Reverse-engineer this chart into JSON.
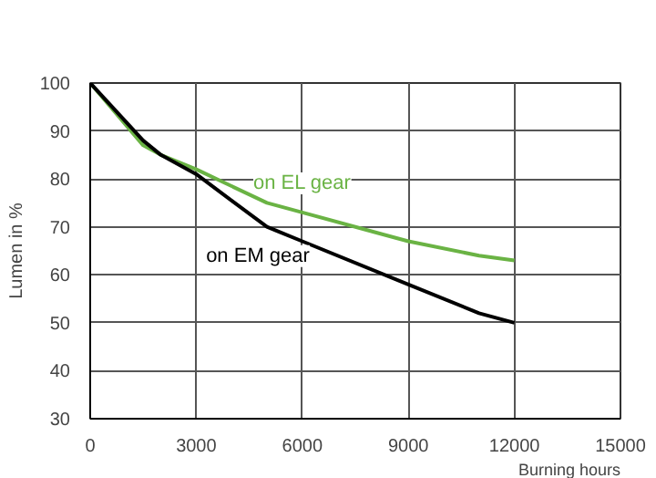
{
  "chart_data": {
    "type": "line",
    "xlabel": "Burning hours",
    "ylabel": "Lumen in %",
    "xlim": [
      0,
      15000
    ],
    "xticks": [
      0,
      3000,
      6000,
      9000,
      12000,
      15000
    ],
    "ylim": [
      30,
      100
    ],
    "yticks": [
      30,
      40,
      50,
      60,
      70,
      80,
      90,
      100
    ],
    "grid": true,
    "marker": "none",
    "line_style": "solid",
    "series": [
      {
        "name": "on EL gear",
        "color": "#6ab344",
        "x": [
          0,
          1500,
          2000,
          3000,
          5000,
          6000,
          8000,
          9000,
          11000,
          12000
        ],
        "values": [
          100,
          87,
          85,
          82,
          75,
          73,
          69,
          67,
          64,
          63
        ]
      },
      {
        "name": "on EM gear",
        "color": "#000000",
        "x": [
          0,
          1500,
          2000,
          3000,
          5000,
          6000,
          9000,
          11000,
          12000
        ],
        "values": [
          100,
          88,
          85,
          81,
          70,
          67,
          58,
          52,
          50
        ]
      }
    ]
  }
}
